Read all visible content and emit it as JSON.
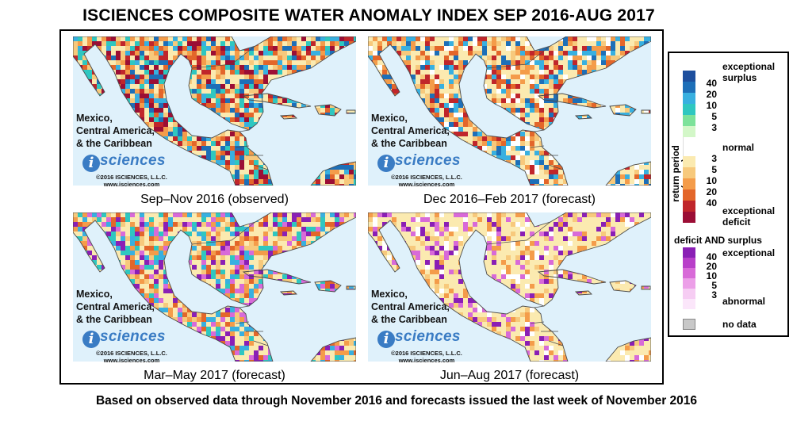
{
  "title": "ISCIENCES COMPOSITE WATER ANOMALY INDEX SEP 2016-AUG 2017",
  "footer": "Based on observed data through November 2016 and forecasts issued the last week of November 2016",
  "colors": {
    "ocean": "#dff1fb",
    "border": "#4a4a4a",
    "brand": "#3a7cc4"
  },
  "panel_common": {
    "region_line1": "Mexico,",
    "region_line2": "Central America,",
    "region_line3": "& the Caribbean",
    "logo_letter": "i",
    "logo_word": "sciences",
    "copyright": "©2016 ISCIENCES, L.L.C.",
    "website": "www.isciences.com"
  },
  "panels": [
    {
      "caption": "Sep–Nov 2016 (observed)",
      "palette": [
        "#fbeab0",
        "#fbeab0",
        "#f7c97c",
        "#f49c4a",
        "#e3662a",
        "#c0262b",
        "#9b0e35",
        "#1d6fb8",
        "#38b0e0",
        "#2fc7c0"
      ]
    },
    {
      "caption": "Dec 2016–Feb 2017 (forecast)",
      "palette": [
        "#fbeab0",
        "#fbeab0",
        "#fbeab0",
        "#f7c97c",
        "#f49c4a",
        "#e3662a",
        "#c0262b",
        "#1d6fb8",
        "#38b0e0",
        "#ffffff"
      ]
    },
    {
      "caption": "Mar–May 2017 (forecast)",
      "palette": [
        "#fbeab0",
        "#fbeab0",
        "#fbeab0",
        "#f7c97c",
        "#f49c4a",
        "#e3662a",
        "#8a1fb5",
        "#d86ad8",
        "#38b0e0",
        "#2fc7c0"
      ]
    },
    {
      "caption": "Jun–Aug 2017 (forecast)",
      "palette": [
        "#fbeab0",
        "#fbeab0",
        "#fbeab0",
        "#fbeab0",
        "#f7c97c",
        "#f49c4a",
        "#fbeab0",
        "#d86ad8",
        "#8a1fb5",
        "#ffffff"
      ]
    }
  ],
  "legend": {
    "axis_label": "return period (years)",
    "surplus_label_line1": "exceptional",
    "surplus_label_line2": "surplus",
    "normal_label": "normal",
    "deficit_label_line1": "exceptional",
    "deficit_label_line2": "deficit",
    "both_header": "deficit AND surplus",
    "both_top_label": "exceptional",
    "both_bottom_label": "abnormal",
    "no_data_label": "no data",
    "surplus_ticks": [
      "40",
      "20",
      "10",
      "5",
      "3"
    ],
    "deficit_ticks": [
      "3",
      "5",
      "10",
      "20",
      "40"
    ],
    "both_ticks": [
      "40",
      "20",
      "10",
      "5",
      "3"
    ],
    "surplus_colors": [
      "#1d4f9e",
      "#1d6fb8",
      "#38b0e0",
      "#2fc7c0",
      "#7de29a",
      "#d3f7c8"
    ],
    "normal_color": "#ffffff",
    "deficit_colors": [
      "#fbeab0",
      "#f7c97c",
      "#f49c4a",
      "#e3662a",
      "#c0262b",
      "#9b0e35"
    ],
    "both_colors": [
      "#8a1fb5",
      "#b83fc9",
      "#d86ad8",
      "#ec9fe8",
      "#f6cdf3",
      "#fbe6fa"
    ],
    "no_data_color": "#c8c8c8"
  }
}
